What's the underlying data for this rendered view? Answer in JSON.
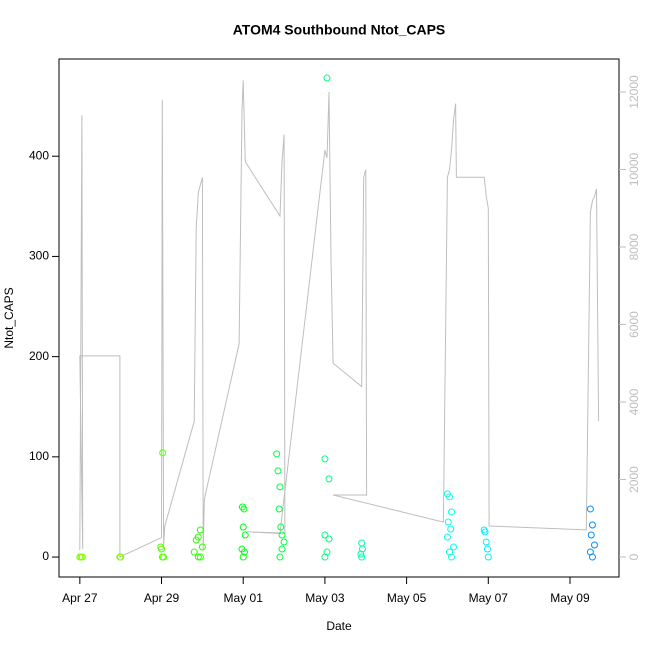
{
  "chart_data": {
    "type": "scatter",
    "title": "ATOM4 Southbound Ntot_CAPS",
    "xlabel": "Date",
    "ylabel": "Ntot_CAPS",
    "xlim": [
      -0.51,
      13.2
    ],
    "ylim": [
      -19.9,
      497
    ],
    "y2lim": [
      -516,
      12852
    ],
    "xticks": [
      {
        "value": 0,
        "label": "Apr 27"
      },
      {
        "value": 2,
        "label": "Apr 29"
      },
      {
        "value": 4,
        "label": "May 01"
      },
      {
        "value": 6,
        "label": "May 03"
      },
      {
        "value": 8,
        "label": "May 05"
      },
      {
        "value": 10,
        "label": "May 07"
      },
      {
        "value": 12,
        "label": "May 09"
      }
    ],
    "yticks": [
      0,
      100,
      200,
      300,
      400
    ],
    "y2ticks": [
      0,
      2000,
      4000,
      6000,
      8000,
      10000,
      12000
    ],
    "y2color": "#bebebe",
    "series": [
      {
        "type": "scatter",
        "x": [
          0,
          0.03,
          0.06,
          0.98,
          1.0,
          1.98,
          2.0,
          2.03,
          2.02,
          2.05,
          2.8,
          2.85,
          2.9,
          2.95,
          3.0,
          2.9,
          2.95,
          3.98,
          4.02,
          4.0,
          4.05,
          3.97,
          4.03,
          4.0,
          4.82,
          4.85,
          4.9,
          4.88,
          4.92,
          4.95,
          5.0,
          4.95,
          4.9,
          6.05,
          6.0,
          6.1,
          6.0,
          6.1,
          6.05,
          6.0,
          6.9,
          6.92,
          6.88,
          6.9,
          9.0,
          9.05,
          9.1,
          9.02,
          9.08,
          9.0,
          9.15,
          9.05,
          9.1,
          9.9,
          9.92,
          9.95,
          9.98,
          10.0,
          12.5,
          12.55,
          12.52,
          12.6,
          12.5,
          12.55
        ],
        "values": [
          0,
          0,
          0,
          0,
          0,
          10,
          8,
          104,
          0,
          0,
          5,
          17,
          20,
          27,
          10,
          0,
          0,
          50,
          48,
          30,
          22,
          8,
          5,
          0,
          103,
          86,
          70,
          48,
          30,
          22,
          15,
          8,
          0,
          478,
          98,
          78,
          22,
          18,
          5,
          0,
          14,
          8,
          3,
          0,
          63,
          60,
          45,
          35,
          28,
          20,
          10,
          5,
          0,
          27,
          25,
          15,
          8,
          0,
          48,
          32,
          22,
          12,
          5,
          0
        ],
        "colors": [
          "#80ff00",
          "#80ff00",
          "#80ff00",
          "#80ff00",
          "#80ff00",
          "#55ff00",
          "#55ff00",
          "#55ff00",
          "#55ff00",
          "#55ff00",
          "#2bff00",
          "#2bff00",
          "#2bff00",
          "#2bff00",
          "#2bff00",
          "#2bff00",
          "#2bff00",
          "#00ff15",
          "#00ff15",
          "#00ff15",
          "#00ff15",
          "#00ff15",
          "#00ff15",
          "#00ff15",
          "#00ff40",
          "#00ff40",
          "#00ff40",
          "#00ff40",
          "#00ff40",
          "#00ff40",
          "#00ff40",
          "#00ff40",
          "#00ff40",
          "#00ff80",
          "#00ff80",
          "#00ff80",
          "#00ff80",
          "#00ff80",
          "#00ff80",
          "#00ff80",
          "#00ffaa",
          "#00ffaa",
          "#00ffaa",
          "#00ffaa",
          "#00ffea",
          "#00ffea",
          "#00ffea",
          "#00ffea",
          "#00ffea",
          "#00ffea",
          "#00ffea",
          "#00ffea",
          "#00ffea",
          "#00f0ff",
          "#00f0ff",
          "#00f0ff",
          "#00f0ff",
          "#00f0ff",
          "#0090ff",
          "#0090ff",
          "#0090ff",
          "#0090ff",
          "#0090ff",
          "#0090ff"
        ]
      },
      {
        "type": "line",
        "axis": "y2",
        "color": "#bebebe",
        "x": [
          0.0,
          0.05,
          0.07,
          0.0,
          0.98,
          0.98,
          2.0,
          2.02,
          2.05,
          2.08,
          2.8,
          2.85,
          2.9,
          2.95,
          3.0,
          3.02,
          3.05,
          3.9,
          3.97,
          4.0,
          4.05,
          4.9,
          4.95,
          5.0,
          5.02,
          4.1,
          4.9,
          6.0,
          6.05,
          6.1,
          6.15,
          6.2,
          6.9,
          6.95,
          7.0,
          7.02,
          6.2,
          8.9,
          9.0,
          9.05,
          9.1,
          9.15,
          9.2,
          9.22,
          9.9,
          9.95,
          10.0,
          10.02,
          12.4,
          12.5,
          12.55,
          12.6,
          12.65,
          12.7
        ],
        "values": [
          181,
          11400,
          200,
          5190,
          5190,
          0,
          500,
          11800,
          300,
          800,
          3500,
          8500,
          9400,
          9600,
          9800,
          200,
          1500,
          5500,
          11500,
          12300,
          10200,
          8800,
          10200,
          10900,
          600,
          650,
          620,
          10500,
          10300,
          12000,
          7700,
          5000,
          4400,
          9800,
          10000,
          1600,
          1600,
          900,
          9800,
          10000,
          10500,
          11300,
          11700,
          9800,
          9800,
          9300,
          9000,
          800,
          700,
          8900,
          9200,
          9300,
          9500,
          3500
        ]
      }
    ]
  }
}
